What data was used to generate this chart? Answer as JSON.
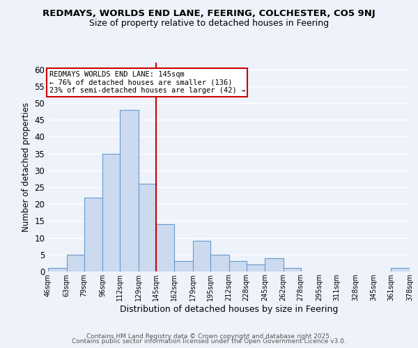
{
  "title": "REDMAYS, WORLDS END LANE, FEERING, COLCHESTER, CO5 9NJ",
  "subtitle": "Size of property relative to detached houses in Feering",
  "xlabel": "Distribution of detached houses by size in Feering",
  "ylabel": "Number of detached properties",
  "bar_edges": [
    46,
    63,
    79,
    96,
    112,
    129,
    145,
    162,
    179,
    195,
    212,
    228,
    245,
    262,
    278,
    295,
    311,
    328,
    345,
    361,
    378
  ],
  "bar_heights": [
    1,
    5,
    22,
    35,
    48,
    26,
    14,
    3,
    9,
    5,
    3,
    2,
    4,
    1,
    0,
    0,
    0,
    0,
    0,
    1
  ],
  "bar_color": "#ccdaf0",
  "bar_edgecolor": "#6699cc",
  "vline_x": 145,
  "vline_color": "#cc0000",
  "ylim": [
    0,
    62
  ],
  "yticks": [
    0,
    5,
    10,
    15,
    20,
    25,
    30,
    35,
    40,
    45,
    50,
    55,
    60
  ],
  "annotation_title": "REDMAYS WORLDS END LANE: 145sqm",
  "annotation_line1": "← 76% of detached houses are smaller (136)",
  "annotation_line2": "23% of semi-detached houses are larger (42) →",
  "annotation_box_facecolor": "#ffffff",
  "annotation_box_edgecolor": "#cc0000",
  "footer1": "Contains HM Land Registry data © Crown copyright and database right 2025.",
  "footer2": "Contains public sector information licensed under the Open Government Licence v3.0.",
  "background_color": "#eef2fa",
  "grid_color": "#ffffff",
  "tick_labels": [
    "46sqm",
    "63sqm",
    "79sqm",
    "96sqm",
    "112sqm",
    "129sqm",
    "145sqm",
    "162sqm",
    "179sqm",
    "195sqm",
    "212sqm",
    "228sqm",
    "245sqm",
    "262sqm",
    "278sqm",
    "295sqm",
    "311sqm",
    "328sqm",
    "345sqm",
    "361sqm",
    "378sqm"
  ]
}
